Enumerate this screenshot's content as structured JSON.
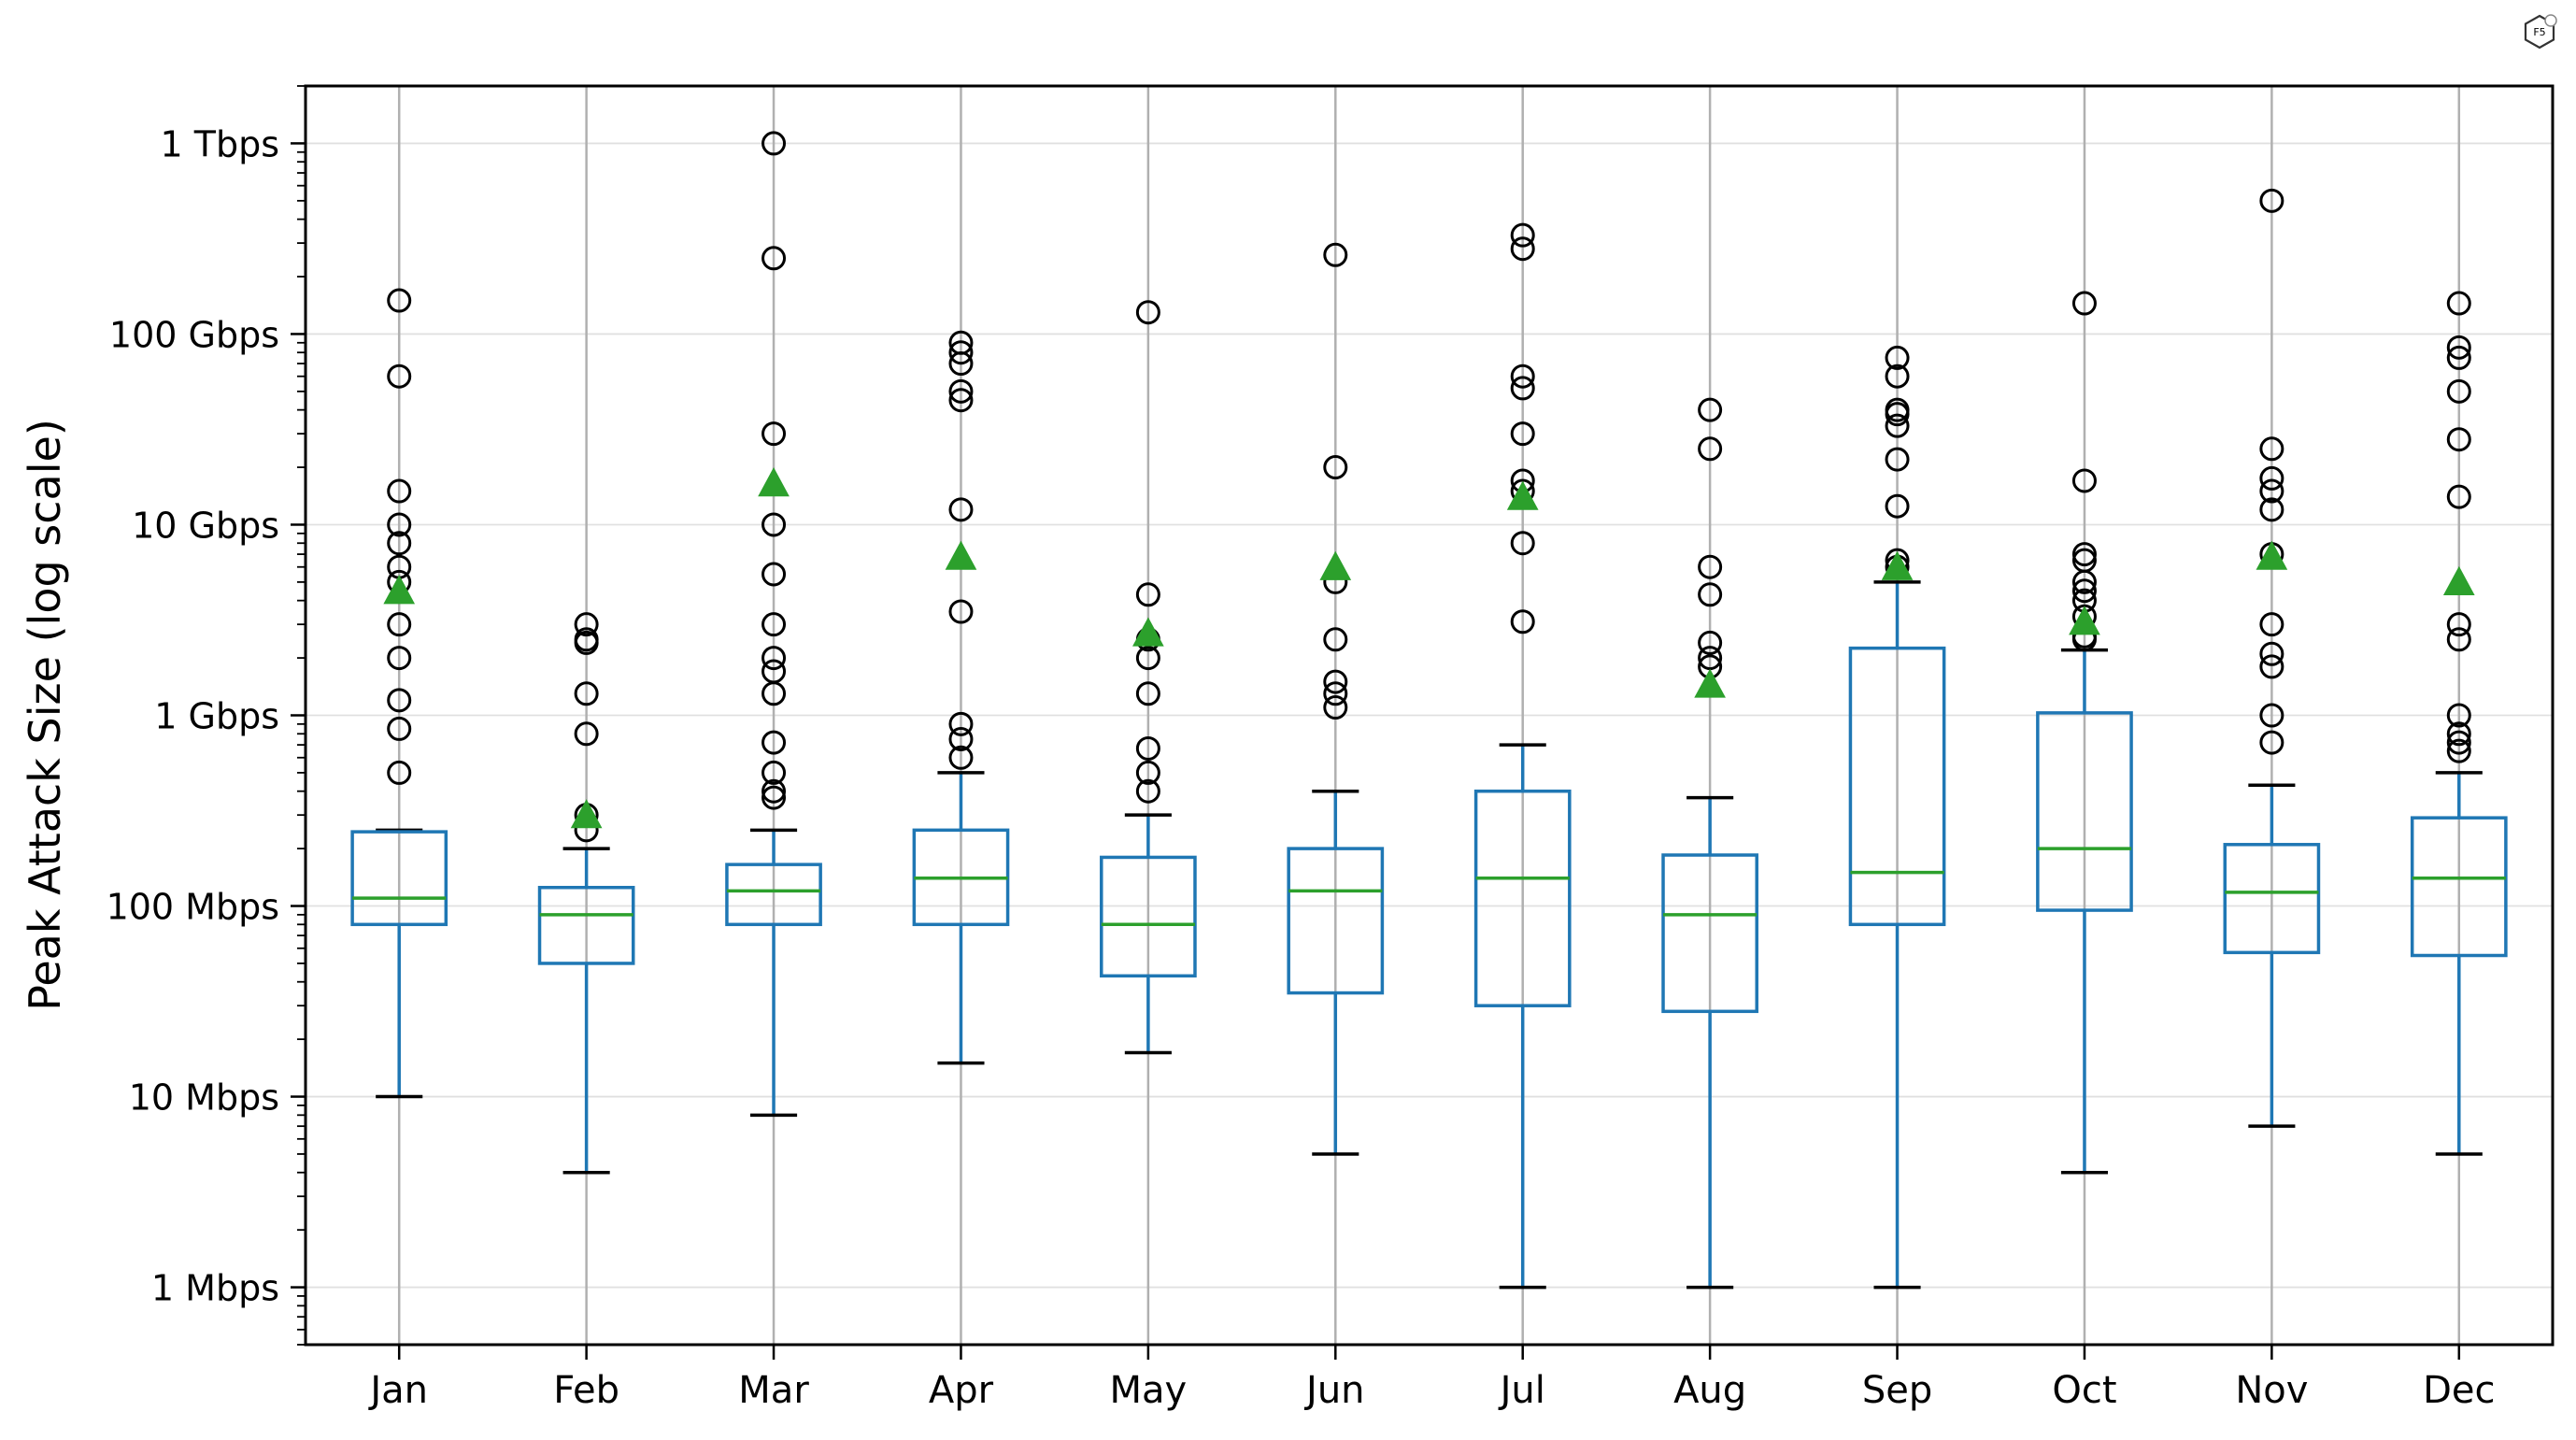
{
  "chart_data": {
    "type": "boxplot",
    "title": "",
    "xlabel": "",
    "ylabel": "Peak Attack Size (log scale)",
    "yscale": "log",
    "y_unit": "Mbps",
    "ylim": [
      0.5,
      2000000
    ],
    "grid": true,
    "categories": [
      "Jan",
      "Feb",
      "Mar",
      "Apr",
      "May",
      "Jun",
      "Jul",
      "Aug",
      "Sep",
      "Oct",
      "Nov",
      "Dec"
    ],
    "y_ticks": [
      {
        "value": 1,
        "label": "1 Mbps"
      },
      {
        "value": 10,
        "label": "10 Mbps"
      },
      {
        "value": 100,
        "label": "100 Mbps"
      },
      {
        "value": 1000,
        "label": "1 Gbps"
      },
      {
        "value": 10000,
        "label": "10 Gbps"
      },
      {
        "value": 100000,
        "label": "100 Gbps"
      },
      {
        "value": 1000000,
        "label": "1 Tbps"
      }
    ],
    "boxes": [
      {
        "label": "Jan",
        "whisker_low": 10,
        "q1": 80,
        "median": 110,
        "q3": 245,
        "whisker_high": 250,
        "mean": 4500,
        "outliers": [
          150000,
          60000,
          15000,
          10000,
          8000,
          6000,
          5000,
          3000,
          2000,
          1200,
          850,
          500
        ]
      },
      {
        "label": "Feb",
        "whisker_low": 4,
        "q1": 50,
        "median": 90,
        "q3": 125,
        "whisker_high": 200,
        "mean": 300,
        "outliers": [
          3000,
          2500,
          2400,
          1300,
          800,
          300,
          250
        ]
      },
      {
        "label": "Mar",
        "whisker_low": 8,
        "q1": 80,
        "median": 120,
        "q3": 165,
        "whisker_high": 250,
        "mean": 16500,
        "outliers": [
          1000000,
          250000,
          30000,
          10000,
          5500,
          3000,
          2000,
          1700,
          1300,
          720,
          500,
          400,
          370
        ]
      },
      {
        "label": "Apr",
        "whisker_low": 15,
        "q1": 80,
        "median": 140,
        "q3": 250,
        "whisker_high": 500,
        "mean": 6800,
        "outliers": [
          90000,
          80000,
          70000,
          50000,
          45000,
          12000,
          3500,
          900,
          750,
          600
        ]
      },
      {
        "label": "May",
        "whisker_low": 17,
        "q1": 43,
        "median": 80,
        "q3": 180,
        "whisker_high": 300,
        "mean": 2700,
        "outliers": [
          130000,
          4300,
          2500,
          2000,
          1300,
          670,
          500,
          400
        ]
      },
      {
        "label": "Jun",
        "whisker_low": 5,
        "q1": 35,
        "median": 120,
        "q3": 200,
        "whisker_high": 400,
        "mean": 6000,
        "outliers": [
          260000,
          20000,
          5000,
          2500,
          1500,
          1300,
          1100
        ]
      },
      {
        "label": "Jul",
        "whisker_low": 1,
        "q1": 30,
        "median": 140,
        "q3": 400,
        "whisker_high": 700,
        "mean": 14000,
        "outliers": [
          330000,
          280000,
          60000,
          52000,
          30000,
          17000,
          15000,
          8000,
          3100
        ]
      },
      {
        "label": "Aug",
        "whisker_low": 1,
        "q1": 28,
        "median": 90,
        "q3": 185,
        "whisker_high": 370,
        "mean": 1450,
        "outliers": [
          40000,
          25000,
          6000,
          4300,
          2400,
          2000,
          1800
        ]
      },
      {
        "label": "Sep",
        "whisker_low": 1,
        "q1": 80,
        "median": 150,
        "q3": 2250,
        "whisker_high": 5000,
        "mean": 6000,
        "outliers": [
          75000,
          60000,
          40000,
          38000,
          33000,
          22000,
          12500,
          6500,
          6000
        ]
      },
      {
        "label": "Oct",
        "whisker_low": 4,
        "q1": 95,
        "median": 200,
        "q3": 1030,
        "whisker_high": 2200,
        "mean": 3100,
        "outliers": [
          145000,
          17000,
          7000,
          6500,
          5000,
          4500,
          4000,
          3300,
          2600,
          2500
        ]
      },
      {
        "label": "Nov",
        "whisker_low": 7,
        "q1": 57,
        "median": 118,
        "q3": 210,
        "whisker_high": 430,
        "mean": 6800,
        "outliers": [
          500000,
          25000,
          17500,
          15000,
          12000,
          7000,
          3000,
          2100,
          1800,
          1000,
          720
        ]
      },
      {
        "label": "Dec",
        "whisker_low": 5,
        "q1": 55,
        "median": 140,
        "q3": 290,
        "whisker_high": 500,
        "mean": 5000,
        "outliers": [
          145000,
          85000,
          75000,
          50000,
          28000,
          14000,
          3000,
          2500,
          1000,
          800,
          720,
          650
        ]
      }
    ],
    "colors": {
      "box": "#1f77b4",
      "median": "#2ca02c",
      "mean": "#2ca02c",
      "whisker_cap": "#000000",
      "outlier": "#000000",
      "grid": "#b0b0b0"
    },
    "mean_marker": "triangle",
    "outlier_marker": "open-circle"
  },
  "watermark": {
    "logo_name": "f5-hexagon-logo",
    "text": "F5"
  }
}
